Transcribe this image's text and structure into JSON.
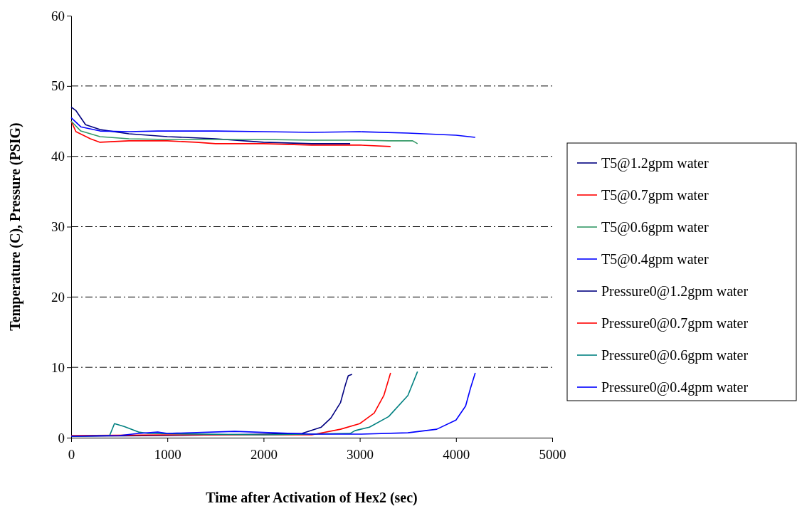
{
  "chart_data": {
    "type": "line",
    "xlabel": "Time after Activation of Hex2 (sec)",
    "ylabel": "Temperature (C), Pressure (PSIG)",
    "xlim": [
      0,
      5000
    ],
    "xticks": [
      0,
      1000,
      2000,
      3000,
      4000,
      5000
    ],
    "ylim": [
      0,
      60
    ],
    "yticks": [
      0,
      10,
      20,
      30,
      40,
      50,
      60
    ],
    "grid": "y",
    "legend": "right",
    "series": [
      {
        "name": "T5@1.2gpm water",
        "color": "#000080",
        "x": [
          0,
          50,
          150,
          300,
          600,
          1000,
          1500,
          2000,
          2500,
          2900
        ],
        "values": [
          47,
          46.5,
          44.5,
          43.8,
          43.2,
          42.8,
          42.5,
          42,
          41.8,
          41.8
        ]
      },
      {
        "name": "T5@0.7gpm water",
        "color": "#ff0000",
        "x": [
          0,
          50,
          200,
          300,
          600,
          1000,
          1300,
          1500,
          2000,
          2500,
          3000,
          3320
        ],
        "values": [
          45,
          43.5,
          42.5,
          42,
          42.2,
          42.2,
          42,
          41.8,
          41.8,
          41.6,
          41.6,
          41.4
        ]
      },
      {
        "name": "T5@0.6gpm water",
        "color": "#339966",
        "x": [
          0,
          100,
          300,
          600,
          1000,
          1500,
          2000,
          2500,
          3000,
          3300,
          3550,
          3600
        ],
        "values": [
          45,
          43.6,
          42.8,
          42.5,
          42.4,
          42.4,
          42.4,
          42.3,
          42.3,
          42.2,
          42.2,
          41.8
        ]
      },
      {
        "name": "T5@0.4gpm water",
        "color": "#0000ff",
        "x": [
          0,
          100,
          300,
          600,
          900,
          1500,
          2000,
          2500,
          3000,
          3500,
          4000,
          4200
        ],
        "values": [
          45.5,
          44.2,
          43.6,
          43.5,
          43.6,
          43.6,
          43.5,
          43.4,
          43.5,
          43.3,
          43,
          42.7
        ]
      },
      {
        "name": "Pressure0@1.2gpm water",
        "color": "#000080",
        "x": [
          0,
          1000,
          2000,
          2400,
          2600,
          2700,
          2800,
          2850,
          2880,
          2920
        ],
        "values": [
          0.2,
          0.3,
          0.5,
          0.6,
          1.5,
          2.8,
          5,
          7.5,
          8.8,
          9
        ]
      },
      {
        "name": "Pressure0@0.7gpm water",
        "color": "#ff0000",
        "x": [
          0,
          1000,
          2500,
          2800,
          3000,
          3150,
          3250,
          3320
        ],
        "values": [
          0.3,
          0.4,
          0.4,
          1.2,
          2,
          3.5,
          6,
          9.2
        ]
      },
      {
        "name": "Pressure0@0.6gpm water",
        "color": "#008080",
        "x": [
          0,
          400,
          450,
          550,
          700,
          800,
          2000,
          2900,
          2950,
          3100,
          3300,
          3500,
          3600
        ],
        "values": [
          0.2,
          0.3,
          2,
          1.6,
          0.8,
          0.6,
          0.4,
          0.6,
          1,
          1.5,
          3,
          6,
          9.4
        ]
      },
      {
        "name": "Pressure0@0.4gpm water",
        "color": "#0000ff",
        "x": [
          0,
          500,
          700,
          900,
          1000,
          1700,
          2500,
          3000,
          3500,
          3800,
          4000,
          4100,
          4150,
          4200
        ],
        "values": [
          0.2,
          0.3,
          0.6,
          0.8,
          0.6,
          0.9,
          0.5,
          0.5,
          0.7,
          1.2,
          2.5,
          4.5,
          7,
          9.2
        ]
      }
    ]
  }
}
